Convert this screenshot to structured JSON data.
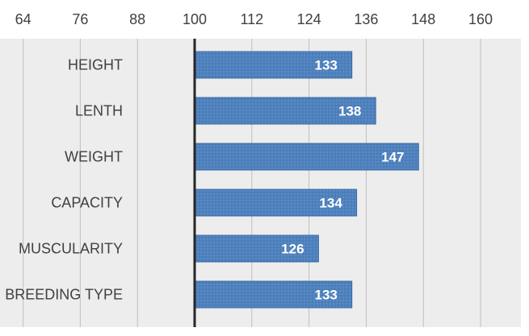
{
  "chart_data": {
    "type": "bar",
    "orientation": "horizontal",
    "categories": [
      "HEIGHT",
      "LENTH",
      "WEIGHT",
      "CAPACITY",
      "MUSCULARITY",
      "BREEDING TYPE"
    ],
    "values": [
      133,
      138,
      147,
      134,
      126,
      133
    ],
    "data_labels": [
      "133",
      "138",
      "147",
      "134",
      "126",
      "133"
    ],
    "baseline": 100,
    "xlim": [
      64,
      166
    ],
    "x_ticks": [
      "64",
      "76",
      "88",
      "100",
      "112",
      "124",
      "136",
      "148",
      "160"
    ],
    "x_tick_values": [
      64,
      76,
      88,
      100,
      112,
      124,
      136,
      148,
      160
    ],
    "title": "",
    "xlabel": "",
    "ylabel": "",
    "grid": true,
    "legend": "none",
    "colors": {
      "bar_fill": "#4f81bd",
      "bar_fill_light": "#6f9bd0",
      "bar_border": "#3a6aa4",
      "grid": "#bfbfbf",
      "baseline": "#262626",
      "plot_background": "#ededed",
      "tick_text": "#404040",
      "data_label_text": "#ffffff"
    }
  }
}
